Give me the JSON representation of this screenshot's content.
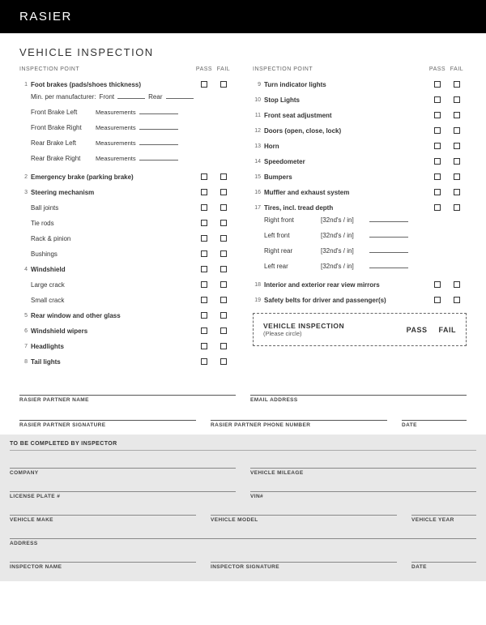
{
  "banner": "RASIER",
  "title": "VEHICLE INSPECTION",
  "headers": {
    "point": "INSPECTION POINT",
    "pass": "PASS",
    "fail": "FAIL"
  },
  "left": {
    "i1": {
      "n": "1",
      "t": "Foot brakes (pads/shoes thickness)"
    },
    "mfr": {
      "a": "Min. per manufacturer:",
      "f": "Front",
      "r": "Rear"
    },
    "m1": {
      "l": "Front Brake Left",
      "m": "Measurements"
    },
    "m2": {
      "l": "Front Brake Right",
      "m": "Measurements"
    },
    "m3": {
      "l": "Rear Brake Left",
      "m": "Measurements"
    },
    "m4": {
      "l": "Rear Brake Right",
      "m": "Measurements"
    },
    "i2": {
      "n": "2",
      "t": "Emergency brake (parking brake)"
    },
    "i3": {
      "n": "3",
      "t": "Steering mechanism"
    },
    "s3a": "Ball joints",
    "s3b": "Tie rods",
    "s3c": "Rack & pinion",
    "s3d": "Bushings",
    "i4": {
      "n": "4",
      "t": "Windshield"
    },
    "s4a": "Large crack",
    "s4b": "Small crack",
    "i5": {
      "n": "5",
      "t": "Rear window and other glass"
    },
    "i6": {
      "n": "6",
      "t": "Windshield wipers"
    },
    "i7": {
      "n": "7",
      "t": "Headlights"
    },
    "i8": {
      "n": "8",
      "t": "Tail lights"
    }
  },
  "right": {
    "i9": {
      "n": "9",
      "t": "Turn indicator lights"
    },
    "i10": {
      "n": "10",
      "t": "Stop Lights"
    },
    "i11": {
      "n": "11",
      "t": "Front seat adjustment"
    },
    "i12": {
      "n": "12",
      "t": "Doors (open, close, lock)"
    },
    "i13": {
      "n": "13",
      "t": "Horn"
    },
    "i14": {
      "n": "14",
      "t": "Speedometer"
    },
    "i15": {
      "n": "15",
      "t": "Bumpers"
    },
    "i16": {
      "n": "16",
      "t": "Muffler and exhaust system"
    },
    "i17": {
      "n": "17",
      "t": "Tires, incl. tread depth"
    },
    "t1": {
      "l": "Right front",
      "u": "[32nd's / in]"
    },
    "t2": {
      "l": "Left front",
      "u": "[32nd's / in]"
    },
    "t3": {
      "l": "Right rear",
      "u": "[32nd's / in]"
    },
    "t4": {
      "l": "Left rear",
      "u": "[32nd's / in]"
    },
    "i18": {
      "n": "18",
      "t": "Interior and exterior rear view mirrors"
    },
    "i19": {
      "n": "19",
      "t": "Safety belts for driver and passenger(s)"
    }
  },
  "result": {
    "h": "VEHICLE INSPECTION",
    "s": "(Please circle)",
    "pass": "PASS",
    "fail": "FAIL"
  },
  "sig": {
    "pname": "RASIER PARTNER NAME",
    "email": "EMAIL ADDRESS",
    "psig": "RASIER PARTNER SIGNATURE",
    "phone": "RASIER PARTNER PHONE NUMBER",
    "date": "DATE"
  },
  "insp": {
    "hdr": "TO BE COMPLETED BY INSPECTOR",
    "company": "COMPANY",
    "mileage": "VEHICLE MILEAGE",
    "plate": "LICENSE PLATE #",
    "vin": "VIN#",
    "make": "VEHICLE MAKE",
    "model": "VEHICLE MODEL",
    "year": "VEHICLE YEAR",
    "addr": "ADDRESS",
    "iname": "INSPECTOR NAME",
    "isig": "INSPECTOR SIGNATURE",
    "date": "DATE"
  }
}
